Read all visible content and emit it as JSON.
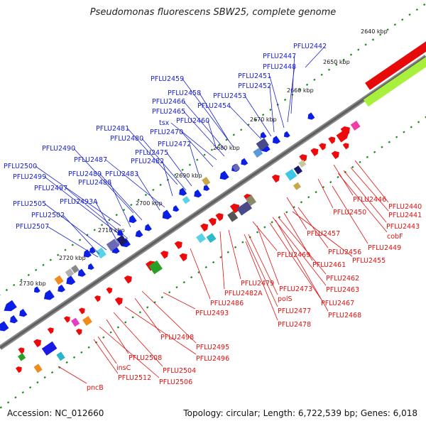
{
  "title": "Pseudomonas fluorescens SBW25, complete genome",
  "footer": {
    "accession": "Accession: NC_012660",
    "summary": "Topology: circular; Length: 6,722,539 bp; Genes: 6,018"
  },
  "colors": {
    "forward_gene": "#0a1ee6",
    "reverse_gene": "#ee0a0a",
    "forward_label": "#1b23c8",
    "reverse_label": "#e01010",
    "genome_line": "#777777",
    "kbp_dots": "#1a8a1a"
  },
  "kbp_ticks": [
    "2640 kbp",
    "2650 kbp",
    "2660 kbp",
    "2670 kbp",
    "2680 kbp",
    "2690 kbp",
    "2700 kbp",
    "2710 kbp",
    "2720 kbp",
    "2730 kbp"
  ],
  "forward_labels": [
    "PFLU2442",
    "PFLU2447",
    "PFLU2448",
    "PFLU2451",
    "PFLU2452",
    "PFLU2453",
    "PFLU2454",
    "PFLU2459",
    "PFLU2458",
    "PFLU2466",
    "PFLU2465",
    "PFLU2460",
    "tsx",
    "PFLU2470",
    "PFLU2481",
    "PFLU2480",
    "PFLU2472",
    "PFLU2475",
    "PFLU2490",
    "PFLU2487",
    "PFLU2482",
    "PFLU2500",
    "PFLU2499",
    "PFLU2489",
    "PFLU2483",
    "PFLU2488",
    "PFLU2497",
    "PFLU2493A",
    "PFLU2505",
    "PFLU2502",
    "PFLU2507"
  ],
  "reverse_labels": [
    "PFLU2446",
    "PFLU2440",
    "PFLU2441",
    "PFLU2443",
    "cobF",
    "PFLU2450",
    "PFLU2449",
    "PFLU2457",
    "PFLU2456",
    "PFLU2455",
    "PFLU2469",
    "PFLU2461",
    "PFLU2462",
    "PFLU2463",
    "PFLU2479",
    "PFLU2473",
    "PFLU2482A",
    "PFLU2486",
    "polS",
    "PFLU2467",
    "PFLU2477",
    "PFLU2468",
    "PFLU2493",
    "PFLU2478",
    "PFLU2498",
    "PFLU2495",
    "PFLU2496",
    "PFLU2508",
    "PFLU2504",
    "insC",
    "PFLU2512",
    "PFLU2506",
    "pncB"
  ]
}
